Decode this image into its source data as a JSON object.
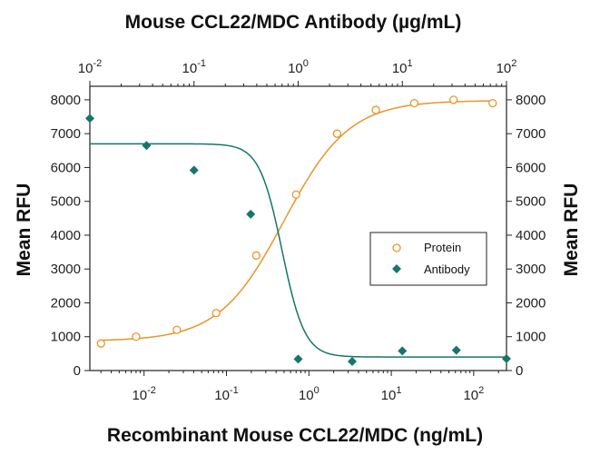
{
  "chart_data": {
    "type": "scatter",
    "top_xlabel": "Mouse CCL22/MDC Antibody (µg/mL)",
    "xlabel": "Recombinant Mouse CCL22/MDC (ng/mL)",
    "ylabel_left": "Mean RFU",
    "ylabel_right": "Mean RFU",
    "x_scale": "log",
    "bottom_xlim": [
      0.0022,
      250
    ],
    "top_xlim": [
      0.01,
      100
    ],
    "ylim": [
      0,
      8400
    ],
    "y_ticks": [
      0,
      1000,
      2000,
      3000,
      4000,
      5000,
      6000,
      7000,
      8000
    ],
    "bottom_x_ticks": [
      {
        "base": "10",
        "exp": "-2",
        "value": 0.01
      },
      {
        "base": "10",
        "exp": "-1",
        "value": 0.1
      },
      {
        "base": "10",
        "exp": "0",
        "value": 1
      },
      {
        "base": "10",
        "exp": "1",
        "value": 10
      },
      {
        "base": "10",
        "exp": "2",
        "value": 100
      }
    ],
    "top_x_ticks": [
      {
        "base": "10",
        "exp": "-2",
        "value": 0.01
      },
      {
        "base": "10",
        "exp": "-1",
        "value": 0.1
      },
      {
        "base": "10",
        "exp": "0",
        "value": 1
      },
      {
        "base": "10",
        "exp": "1",
        "value": 10
      },
      {
        "base": "10",
        "exp": "2",
        "value": 100
      }
    ],
    "legend_position": "center-right",
    "series": [
      {
        "name": "Protein",
        "axis": "bottom",
        "marker": "open-circle",
        "color": "#e8962a",
        "x": [
          0.003,
          0.008,
          0.025,
          0.075,
          0.23,
          0.7,
          2.2,
          6.5,
          19,
          57,
          170
        ],
        "y": [
          800,
          1000,
          1200,
          1700,
          3400,
          5200,
          7000,
          7700,
          7900,
          8000,
          7900
        ]
      },
      {
        "name": "Antibody",
        "axis": "top",
        "marker": "filled-diamond",
        "color": "#17756a",
        "x": [
          0.01,
          0.035,
          0.1,
          0.35,
          1.0,
          3.3,
          10,
          33,
          100
        ],
        "y": [
          7450,
          6650,
          5920,
          4620,
          340,
          270,
          580,
          600,
          350
        ]
      }
    ],
    "fit_curves": [
      {
        "series": "Protein",
        "color": "#e8962a",
        "bottom": 870,
        "top": 7980,
        "ec50": 0.5,
        "hill": 1.1
      },
      {
        "series": "Antibody",
        "color": "#17756a",
        "bottom": 400,
        "top": 6700,
        "ec50": 0.7,
        "hill": 4.0
      }
    ]
  }
}
